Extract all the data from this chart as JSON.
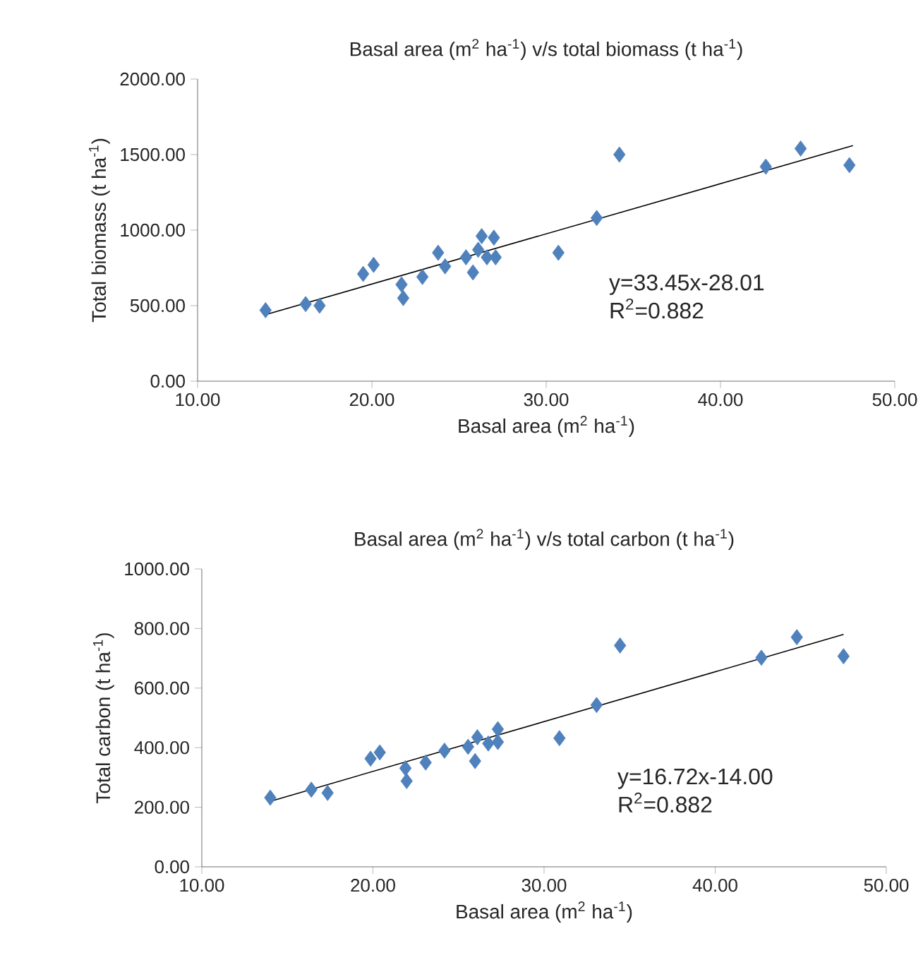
{
  "chart_data": [
    {
      "type": "scatter",
      "title": "Basal area (m$^{2}$ ha$^{-1}$) v/s total biomass (t ha$^{-1}$)",
      "xlabel": "Basal area (m$^{2}$ ha$^{-1}$)",
      "ylabel": "Total biomass (t ha$^{-1}$)",
      "xlim": [
        10,
        50
      ],
      "xticks": [
        {
          "value": 10,
          "label": "10.00"
        },
        {
          "value": 20,
          "label": "20.00"
        },
        {
          "value": 30,
          "label": "30.00"
        },
        {
          "value": 40,
          "label": "40.00"
        },
        {
          "value": 50,
          "label": "50.00"
        }
      ],
      "ylim": [
        0,
        2000
      ],
      "yticks": [
        {
          "value": 0,
          "label": "0.00"
        },
        {
          "value": 500,
          "label": "500.00"
        },
        {
          "value": 1000,
          "label": "1000.00"
        },
        {
          "value": 1500,
          "label": "1500.00"
        },
        {
          "value": 2000,
          "label": "2000.00"
        }
      ],
      "annotations": [
        "y=33.45x-28.01",
        "R$^{2}$=0.882"
      ],
      "series": [
        {
          "color": "#4f81bd",
          "marker": "diamond",
          "x": [
            13.9,
            16.2,
            17.0,
            19.5,
            20.1,
            21.7,
            21.8,
            22.9,
            23.8,
            24.2,
            25.4,
            25.8,
            26.1,
            26.3,
            26.6,
            27.0,
            27.1,
            30.7,
            32.9,
            34.2,
            42.6,
            44.6,
            47.4
          ],
          "values": [
            470,
            510,
            500,
            710,
            770,
            640,
            550,
            690,
            850,
            760,
            820,
            720,
            870,
            960,
            820,
            950,
            820,
            850,
            1080,
            1500,
            1420,
            1540,
            1430
          ]
        },
        {
          "type": "line",
          "color": "#000000",
          "marker": "none",
          "x": [
            13.9,
            47.6
          ],
          "values": [
            440,
            1560
          ]
        }
      ]
    },
    {
      "type": "scatter",
      "title": "Basal area (m$^{2}$ ha$^{-1}$) v/s total carbon (t ha$^{-1}$)",
      "xlabel": "Basal area (m$^{2}$ ha$^{-1}$)",
      "ylabel": "Total carbon (t ha$^{-1}$)",
      "xlim": [
        10,
        50
      ],
      "xticks": [
        {
          "value": 10,
          "label": "10.00"
        },
        {
          "value": 20,
          "label": "20.00"
        },
        {
          "value": 30,
          "label": "30.00"
        },
        {
          "value": 40,
          "label": "40.00"
        },
        {
          "value": 50,
          "label": "50.00"
        }
      ],
      "ylim": [
        0,
        1000
      ],
      "yticks": [
        {
          "value": 0,
          "label": "0.00"
        },
        {
          "value": 200,
          "label": "200.00"
        },
        {
          "value": 400,
          "label": "400.00"
        },
        {
          "value": 600,
          "label": "600.00"
        },
        {
          "value": 800,
          "label": "800.00"
        },
        {
          "value": 1000,
          "label": "1000.00"
        }
      ],
      "annotations": [
        "y=16.72x-14.00",
        "R$^{2}$=0.882"
      ],
      "series": [
        {
          "color": "#4f81bd",
          "marker": "diamond",
          "x": [
            14.0,
            16.4,
            17.35,
            19.86,
            20.4,
            21.9,
            21.97,
            23.08,
            24.18,
            25.56,
            25.97,
            26.1,
            26.74,
            27.3,
            27.3,
            30.9,
            33.07,
            34.44,
            42.7,
            44.77,
            47.5
          ],
          "values": [
            232,
            259,
            248,
            363,
            384,
            331,
            288,
            350,
            390,
            403,
            355,
            435,
            414,
            462,
            419,
            432,
            543,
            743,
            702,
            771,
            707
          ]
        },
        {
          "type": "line",
          "color": "#000000",
          "marker": "none",
          "x": [
            14.0,
            47.5
          ],
          "values": [
            220,
            780
          ]
        }
      ]
    }
  ]
}
